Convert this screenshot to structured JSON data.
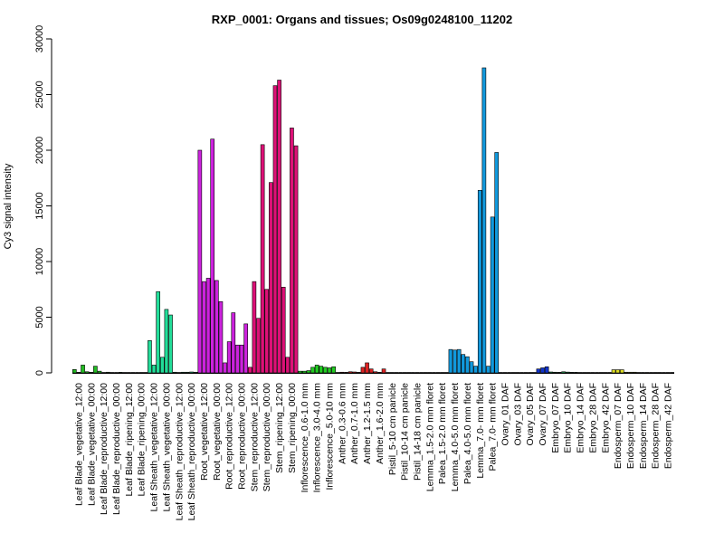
{
  "chart_data": {
    "type": "bar",
    "title": "RXP_0001: Organs and tissues; Os09g0248100_11202",
    "ylabel": "Cy3 signal intensity",
    "xlabel": "",
    "ylim": [
      0,
      30000
    ],
    "yticks": [
      0,
      5000,
      10000,
      15000,
      20000,
      25000,
      30000
    ],
    "grid": false,
    "legend": "none",
    "group_labels": [
      "Leaf Blade_vegetative_12:00",
      "Leaf Blade_vegetative_00:00",
      "Leaf Blade_reproductive_12:00",
      "Leaf Blade_reproductive_00:00",
      "Leaf Blade_ripening_12:00",
      "Leaf Blade_ripening_00:00",
      "Leaf Sheath_vegetative_12:00",
      "Leaf Sheath_vegetative_00:00",
      "Leaf Sheath_reproductive_12:00",
      "Leaf Sheath_reproductive_00:00",
      "Root_vegetative_12:00",
      "Root_vegetative_00:00",
      "Root_reproductive_12:00",
      "Root_reproductive_00:00",
      "Stem_reproductive_12:00",
      "Stem_reproductive_00:00",
      "Stem_ripening_12:00",
      "Stem_ripening_00:00",
      "Inflorescence_0.6-1.0 mm",
      "Inflorescence_3.0-4.0 mm",
      "Inflorescence_5.0-10 mm",
      "Anther_0.3-0.6 mm",
      "Anther_0.7-1.0 mm",
      "Anther_1.2-1.5 mm",
      "Anther_1.6-2.0 mm",
      "Pistil_5-10 cm panicle",
      "Pistil_10-14 cm panicle",
      "Pistil_14-18 cm panicle",
      "Lemma_1.5-2.0 mm floret",
      "Palea_1.5-2.0 mm floret",
      "Lemma_4.0-5.0 mm floret",
      "Palea_4.0-5.0 mm floret",
      "Lemma_7.0- mm floret",
      "Palea_7.0- mm floret",
      "Ovary_01 DAF",
      "Ovary_03 DAF",
      "Ovary_05 DAF",
      "Ovary_07 DAF",
      "Embryo_07 DAF",
      "Embryo_10 DAF",
      "Embryo_14 DAF",
      "Embryo_28 DAF",
      "Embryo_42 DAF",
      "Endosperm_07 DAF",
      "Endosperm_10 DAF",
      "Endosperm_14 DAF",
      "Endosperm_28 DAF",
      "Endosperm_42 DAF"
    ],
    "bars_per_group": 3,
    "group_colors": [
      "#22bb22",
      "#22bb22",
      "#22bb22",
      "#22bb22",
      "#22bb22",
      "#22bb22",
      "#22dd99",
      "#22dd99",
      "#22dd99",
      "#22dd99",
      "#cc22dd",
      "#cc22dd",
      "#cc22dd",
      "#cc22dd",
      "#dd1177",
      "#dd1177",
      "#dd1177",
      "#dd1177",
      "#22cc22",
      "#22cc22",
      "#22cc22",
      "#dd2222",
      "#dd2222",
      "#dd2222",
      "#dd2222",
      "#1199dd",
      "#1199dd",
      "#1199dd",
      "#1199dd",
      "#1199dd",
      "#1199dd",
      "#1199dd",
      "#1199dd",
      "#1199dd",
      "#1133cc",
      "#1133cc",
      "#1133cc",
      "#1133cc",
      "#22aa55",
      "#22aa55",
      "#22aa55",
      "#22aa55",
      "#22aa55",
      "#dddd22",
      "#dddd22",
      "#dddd22",
      "#dddd22",
      "#dddd22"
    ],
    "values": [
      [
        300,
        50,
        700
      ],
      [
        100,
        50,
        600
      ],
      [
        150,
        30,
        60
      ],
      [
        40,
        30,
        50
      ],
      [
        40,
        30,
        40
      ],
      [
        40,
        30,
        40
      ],
      [
        2900,
        700,
        7300
      ],
      [
        1400,
        5700,
        5200
      ],
      [
        60,
        40,
        60
      ],
      [
        60,
        80,
        60
      ],
      [
        20000,
        8200,
        8500
      ],
      [
        21000,
        8300,
        6400
      ],
      [
        900,
        2800,
        5400
      ],
      [
        2500,
        2500,
        4400
      ],
      [
        500,
        8200,
        4900
      ],
      [
        20500,
        7500,
        17100
      ],
      [
        25800,
        26300,
        7700
      ],
      [
        1400,
        22000,
        20400
      ],
      [
        150,
        150,
        200
      ],
      [
        500,
        700,
        600
      ],
      [
        500,
        450,
        550
      ],
      [
        40,
        60,
        50
      ],
      [
        100,
        80,
        50
      ],
      [
        500,
        900,
        350
      ],
      [
        100,
        50,
        350
      ],
      [
        40,
        40,
        40
      ],
      [
        40,
        40,
        40
      ],
      [
        40,
        40,
        40
      ],
      [
        40,
        40,
        40
      ],
      [
        40,
        40,
        40
      ],
      [
        2100,
        2050,
        2100
      ],
      [
        1650,
        1450,
        1000
      ],
      [
        600,
        16400,
        27400
      ],
      [
        600,
        14000,
        19800
      ],
      [
        40,
        40,
        40
      ],
      [
        40,
        40,
        40
      ],
      [
        40,
        40,
        40
      ],
      [
        350,
        450,
        550
      ],
      [
        80,
        60,
        50
      ],
      [
        100,
        70,
        50
      ],
      [
        50,
        40,
        40
      ],
      [
        40,
        40,
        40
      ],
      [
        40,
        40,
        40
      ],
      [
        280,
        280,
        280
      ],
      [
        60,
        60,
        60
      ],
      [
        40,
        40,
        40
      ],
      [
        40,
        40,
        40
      ],
      [
        40,
        40,
        40
      ]
    ]
  }
}
